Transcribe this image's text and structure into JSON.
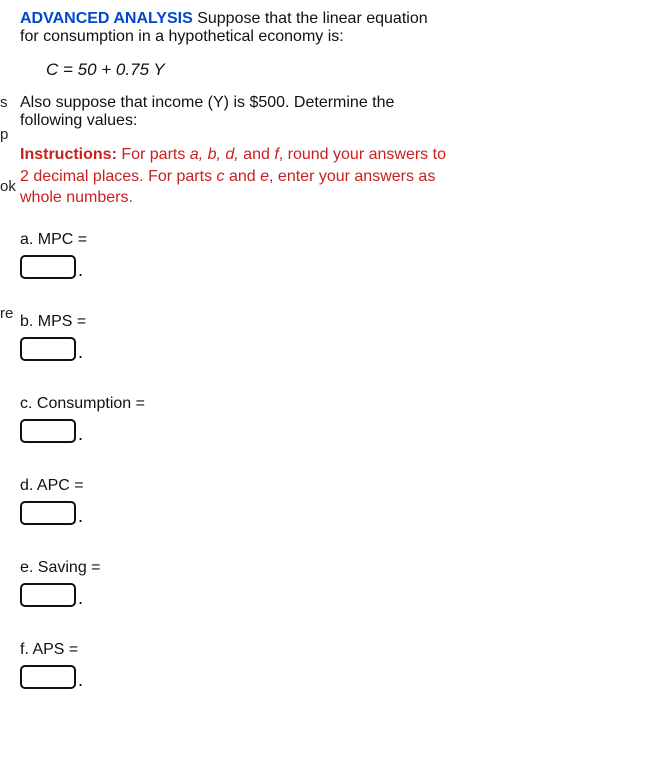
{
  "header": {
    "lead": "ADVANCED ANALYSIS",
    "line1_rest": " Suppose that the linear equation",
    "line2": "for consumption in a hypothetical economy is:"
  },
  "equation": "C = 50 + 0.75 Y",
  "suppose": {
    "line1": "Also suppose that income (Y) is $500. Determine the",
    "line2": "following values:"
  },
  "instructions": {
    "bold": "Instructions:",
    "seg1": " For parts ",
    "abdf": "a, b, d,",
    "seg_and1": " and ",
    "f": "f",
    "seg2": ", round your answers to",
    "line2a": "2 decimal places. For parts ",
    "c": "c",
    "seg_and2": " and ",
    "e": "e",
    "line2b": ", enter your answers as",
    "line3": "whole numbers."
  },
  "parts": {
    "a": "a. MPC =",
    "b": "b. MPS =",
    "c": "c. Consumption =",
    "d": "d. APC =",
    "e": "e. Saving =",
    "f": "f. APS ="
  },
  "margin": {
    "s": "s",
    "p": "p",
    "ok": "ok",
    "re": "re"
  }
}
